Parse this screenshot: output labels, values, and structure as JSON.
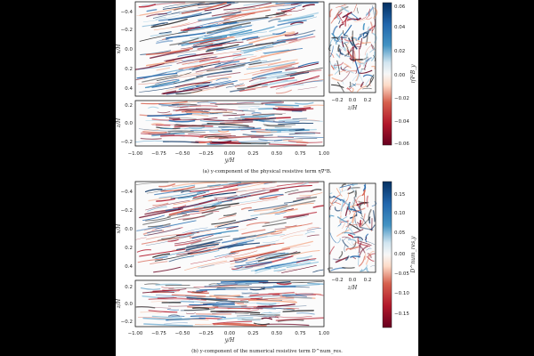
{
  "figures": [
    {
      "caption": "(a) y-component of the physical resistive term η∇²B.",
      "colorbar": {
        "label": "η∇²B_y",
        "ticks": [
          "0.06",
          "0.04",
          "0.02",
          "0.00",
          "−0.02",
          "−0.04",
          "−0.06"
        ],
        "range": [
          -0.065,
          0.065
        ]
      },
      "top_panel": {
        "ylabel": "x/H",
        "yticks": [
          "−0.4",
          "−0.2",
          "0.0",
          "0.2",
          "0.4"
        ]
      },
      "side_panel": {
        "xlabel": "z/H",
        "xticks": [
          "−0.2",
          "0.0",
          "0.2"
        ]
      },
      "bottom_panel": {
        "ylabel": "z/H",
        "yticks": [
          "0.2",
          "0.0",
          "−0.2"
        ],
        "xlabel": "y/H",
        "xticks": [
          "−1.00",
          "−0.75",
          "−0.50",
          "−0.25",
          "0.00",
          "0.25",
          "0.50",
          "0.75",
          "1.00"
        ]
      }
    },
    {
      "caption": "(b) y-component of the numerical resistive term D^num_res.",
      "colorbar": {
        "label": "D^num_res,y",
        "ticks": [
          "0.15",
          "0.10",
          "0.05",
          "0.00",
          "−0.05",
          "−0.10",
          "−0.15"
        ],
        "range": [
          -0.19,
          0.19
        ]
      },
      "top_panel": {
        "ylabel": "x/H",
        "yticks": [
          "−0.4",
          "−0.2",
          "0.0",
          "0.2",
          "0.4"
        ]
      },
      "side_panel": {
        "xlabel": "z/H",
        "xticks": [
          "−0.2",
          "0.0",
          "0.2"
        ]
      },
      "bottom_panel": {
        "ylabel": "z/H",
        "yticks": [
          "0.2",
          "0.0",
          "−0.2"
        ],
        "xlabel": "y/H",
        "xticks": [
          "−1.00",
          "−0.75",
          "−0.50",
          "−0.25",
          "0.00",
          "0.25",
          "0.50",
          "0.75",
          "1.00"
        ]
      }
    }
  ],
  "colors": {
    "colormap_low": "#67001f",
    "colormap_mid": "#f7f7f7",
    "colormap_high": "#053061"
  }
}
